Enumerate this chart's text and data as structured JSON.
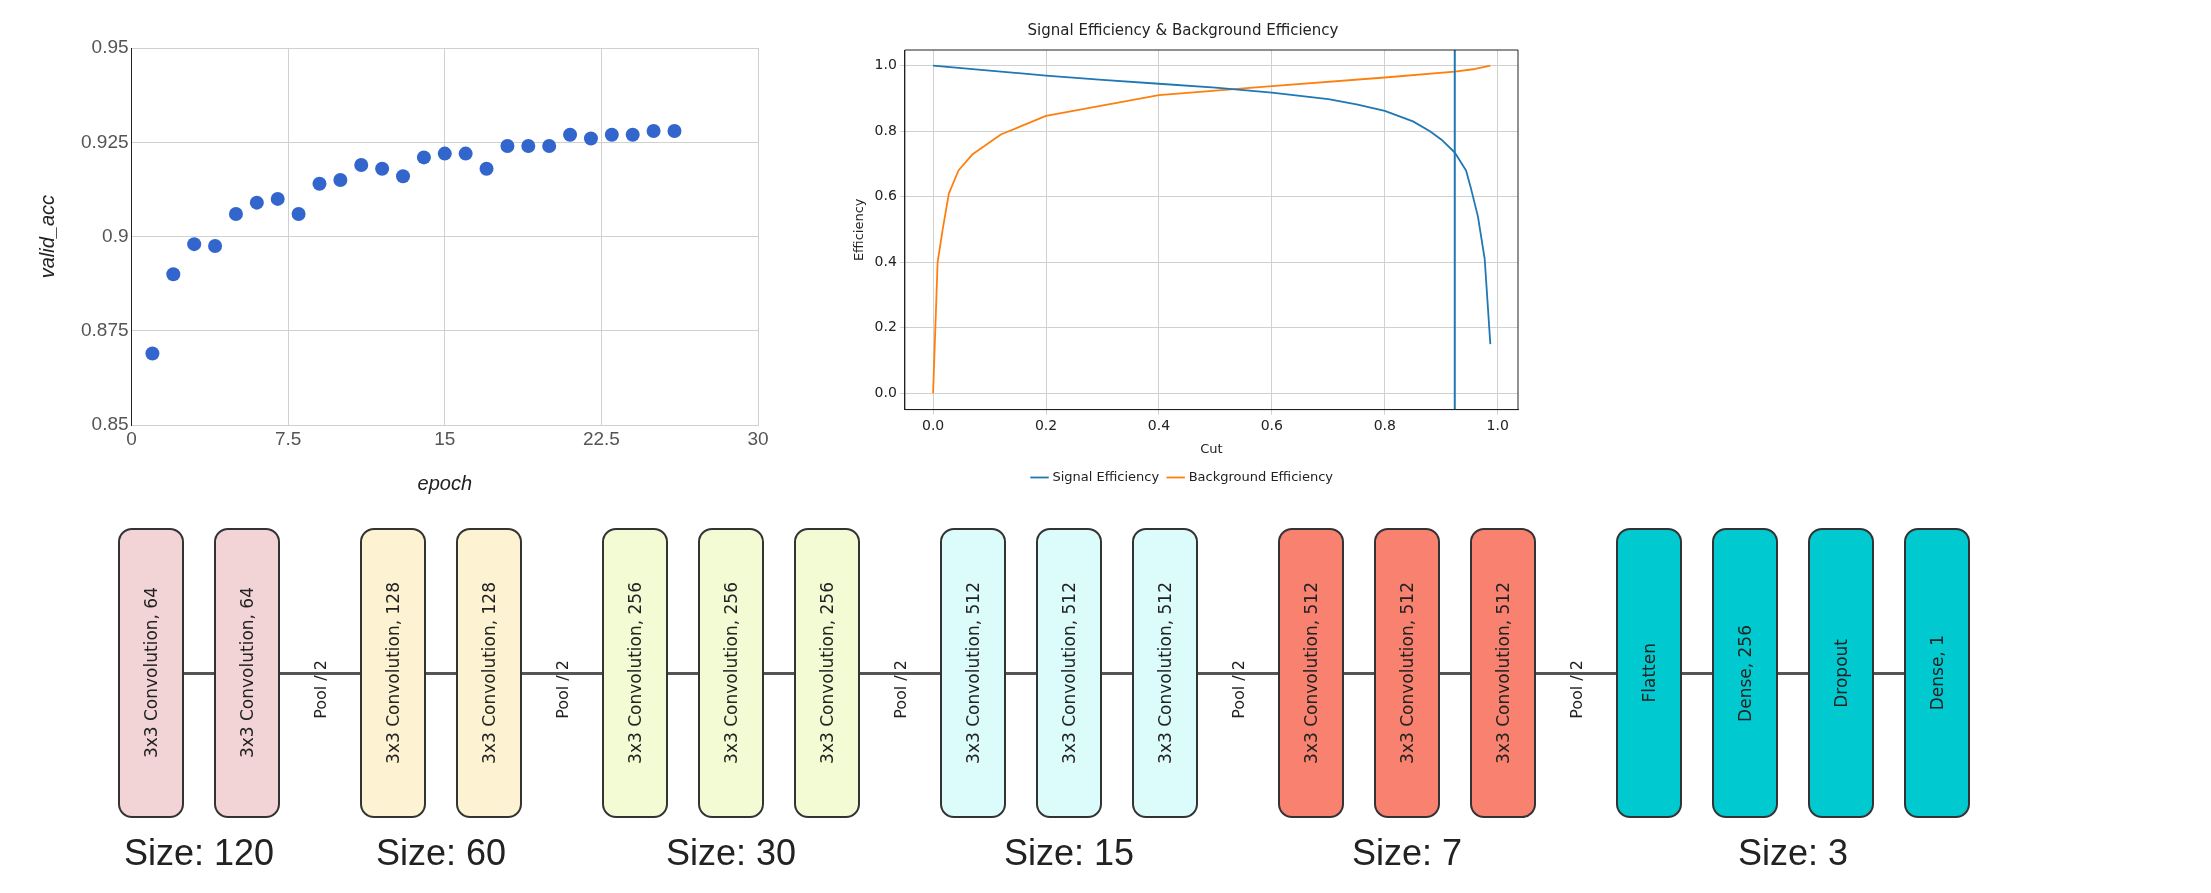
{
  "chart_data": [
    {
      "type": "scatter",
      "xlabel": "epoch",
      "ylabel": "valid_acc",
      "x": [
        1,
        2,
        3,
        4,
        5,
        6,
        7,
        8,
        9,
        10,
        11,
        12,
        13,
        14,
        15,
        16,
        17,
        18,
        19,
        20,
        21,
        22,
        23,
        24,
        25,
        26
      ],
      "series": [
        {
          "color": "#3366cc",
          "values": [
            0.869,
            0.89,
            0.898,
            0.8975,
            0.906,
            0.909,
            0.91,
            0.906,
            0.914,
            0.915,
            0.919,
            0.918,
            0.916,
            0.921,
            0.922,
            0.922,
            0.918,
            0.924,
            0.924,
            0.924,
            0.927,
            0.926,
            0.927,
            0.927,
            0.928,
            0.928
          ]
        }
      ],
      "xlim": [
        0,
        30
      ],
      "xticks": [
        0,
        7.5,
        15,
        22.5,
        30
      ],
      "ylim": [
        0.85,
        0.95
      ],
      "yticks": [
        0.85,
        0.875,
        0.9,
        0.925,
        0.95
      ],
      "grid": true,
      "marker": "circle"
    },
    {
      "type": "line",
      "title": "Signal Efficiency & Background Efficiency",
      "xlabel": "Cut",
      "ylabel": "Efficiency",
      "series": [
        {
          "name": "Signal Efficiency",
          "color": "#1f77b4",
          "x": [
            0,
            0.1,
            0.2,
            0.3,
            0.4,
            0.5,
            0.6,
            0.7,
            0.75,
            0.8,
            0.85,
            0.88,
            0.9,
            0.924,
            0.944,
            0.952,
            0.965,
            0.977,
            0.987
          ],
          "values": [
            1.0,
            0.985,
            0.97,
            0.957,
            0.945,
            0.933,
            0.918,
            0.898,
            0.882,
            0.862,
            0.83,
            0.8,
            0.775,
            0.735,
            0.68,
            0.63,
            0.54,
            0.41,
            0.15
          ]
        },
        {
          "name": "Background Efficiency",
          "color": "#ff7f0e",
          "x": [
            0,
            0.008,
            0.017,
            0.028,
            0.045,
            0.07,
            0.12,
            0.2,
            0.4,
            0.6,
            0.8,
            0.924,
            0.96,
            0.987
          ],
          "values": [
            0,
            0.4,
            0.5,
            0.61,
            0.68,
            0.73,
            0.79,
            0.847,
            0.91,
            0.938,
            0.964,
            0.982,
            0.99,
            1.0
          ]
        }
      ],
      "ref_lines": [
        {
          "axis": "x",
          "value": 0.924,
          "color": "#1f77b4"
        }
      ],
      "xlim": [
        -0.05,
        1.036
      ],
      "xticks": [
        {
          "value": 0,
          "label": "0.0"
        },
        0.2,
        0.4,
        0.6,
        0.8,
        {
          "value": 1,
          "label": "1.0"
        }
      ],
      "ylim": [
        -0.05,
        1.048
      ],
      "yticks": [
        {
          "value": 0,
          "label": "0.0"
        },
        0.2,
        0.4,
        0.6,
        0.8,
        {
          "value": 1,
          "label": "1.0"
        }
      ],
      "grid": true,
      "legend": "bottom",
      "marker": "none",
      "line_style": "solid"
    },
    {
      "type": "other",
      "categories": [
        "3x3 Convolution, 64",
        "3x3 Convolution, 64",
        "Pool / 2",
        "3x3 Convolution, 128",
        "3x3 Convolution, 128",
        "Pool / 2",
        "3x3 Convolution, 256",
        "3x3 Convolution, 256",
        "3x3 Convolution, 256",
        "Pool / 2",
        "3x3 Convolution, 512",
        "3x3 Convolution, 512",
        "3x3 Convolution, 512",
        "Pool / 2",
        "3x3 Convolution, 512",
        "3x3 Convolution, 512",
        "3x3 Convolution, 512",
        "Pool / 2",
        "Flatten",
        "Dense, 256",
        "Dropout",
        "Dense, 1"
      ],
      "colors": [
        "#f2d4d7",
        "#f2d4d7",
        null,
        "#fdf3d2",
        "#fdf3d2",
        null,
        "#f3fbd4",
        "#f3fbd4",
        "#f3fbd4",
        null,
        "#dcfcfc",
        "#dcfcfc",
        "#dcfcfc",
        null,
        "#f88170",
        "#f88170",
        "#f88170",
        null,
        "#00c9cf",
        "#00c9cf",
        "#00c9cf",
        "#00c9cf"
      ],
      "annotations": [
        "Size: 120",
        "Size: 60",
        "Size: 30",
        "Size: 15",
        "Size: 7",
        "Size: 3"
      ]
    }
  ]
}
